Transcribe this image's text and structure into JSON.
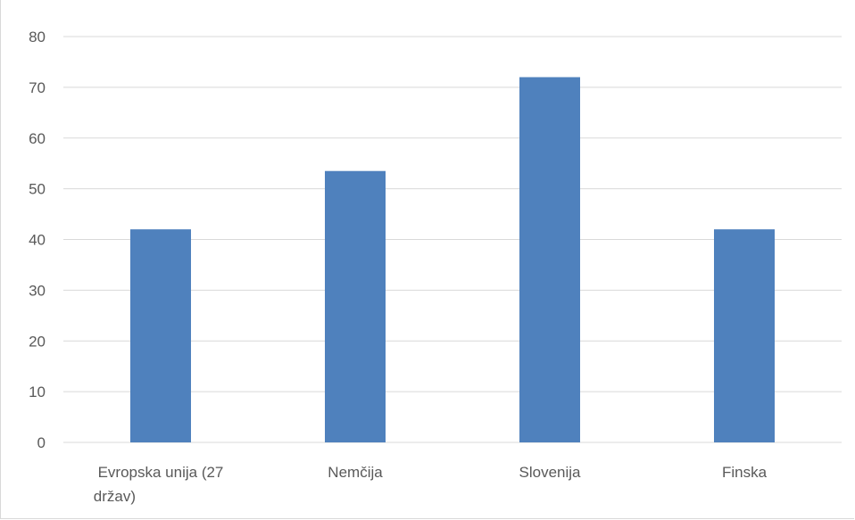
{
  "chart_data": {
    "type": "bar",
    "categories": [
      [
        "Evropska unija (27",
        "držav)"
      ],
      [
        "Nemčija"
      ],
      [
        "Slovenija"
      ],
      [
        "Finska"
      ]
    ],
    "values": [
      42,
      53.5,
      72,
      42
    ],
    "ylim": [
      0,
      80
    ],
    "yticks": [
      "0",
      "10",
      "20",
      "30",
      "40",
      "50",
      "60",
      "70",
      "80"
    ],
    "grid": true,
    "legend": "none",
    "colors": {
      "bar": "#4f81bd",
      "grid": "#d9d9d9",
      "text": "#595959"
    }
  }
}
